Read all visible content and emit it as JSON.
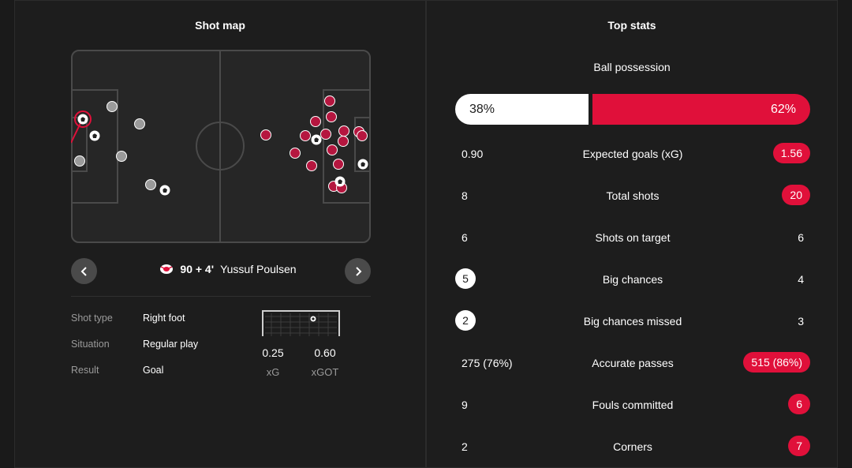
{
  "shot_map": {
    "title": "Shot map",
    "selected_shot": {
      "minute": "90 + 4'",
      "player": "Yussuf Poulsen",
      "team_logo": "rb-leipzig-bull-logo"
    },
    "details": [
      {
        "key": "Shot type",
        "value": "Right foot"
      },
      {
        "key": "Situation",
        "value": "Regular play"
      },
      {
        "key": "Result",
        "value": "Goal"
      }
    ],
    "xg": {
      "value": "0.25",
      "label": "xG"
    },
    "xgot": {
      "value": "0.60",
      "label": "xGOT"
    },
    "icons": {
      "prev": "chevron-left-icon",
      "next": "chevron-right-icon"
    },
    "colors": {
      "home_shot": "#9a9a9a",
      "away_shot": "#b5163f",
      "accent": "#e0103a"
    }
  },
  "top_stats": {
    "title": "Top stats",
    "possession": {
      "label": "Ball possession",
      "home": "38%",
      "away": "62%",
      "home_pct": 38,
      "away_pct": 62
    },
    "rows": [
      {
        "label": "Expected goals (xG)",
        "home": "0.90",
        "away": "1.56",
        "highlight": "away"
      },
      {
        "label": "Total shots",
        "home": "8",
        "away": "20",
        "highlight": "away"
      },
      {
        "label": "Shots on target",
        "home": "6",
        "away": "6",
        "highlight": "none"
      },
      {
        "label": "Big chances",
        "home": "5",
        "away": "4",
        "highlight": "home"
      },
      {
        "label": "Big chances missed",
        "home": "2",
        "away": "3",
        "highlight": "home"
      },
      {
        "label": "Accurate passes",
        "home": "275 (76%)",
        "away": "515 (86%)",
        "highlight": "away"
      },
      {
        "label": "Fouls committed",
        "home": "9",
        "away": "6",
        "highlight": "away"
      },
      {
        "label": "Corners",
        "home": "2",
        "away": "7",
        "highlight": "away"
      }
    ]
  }
}
